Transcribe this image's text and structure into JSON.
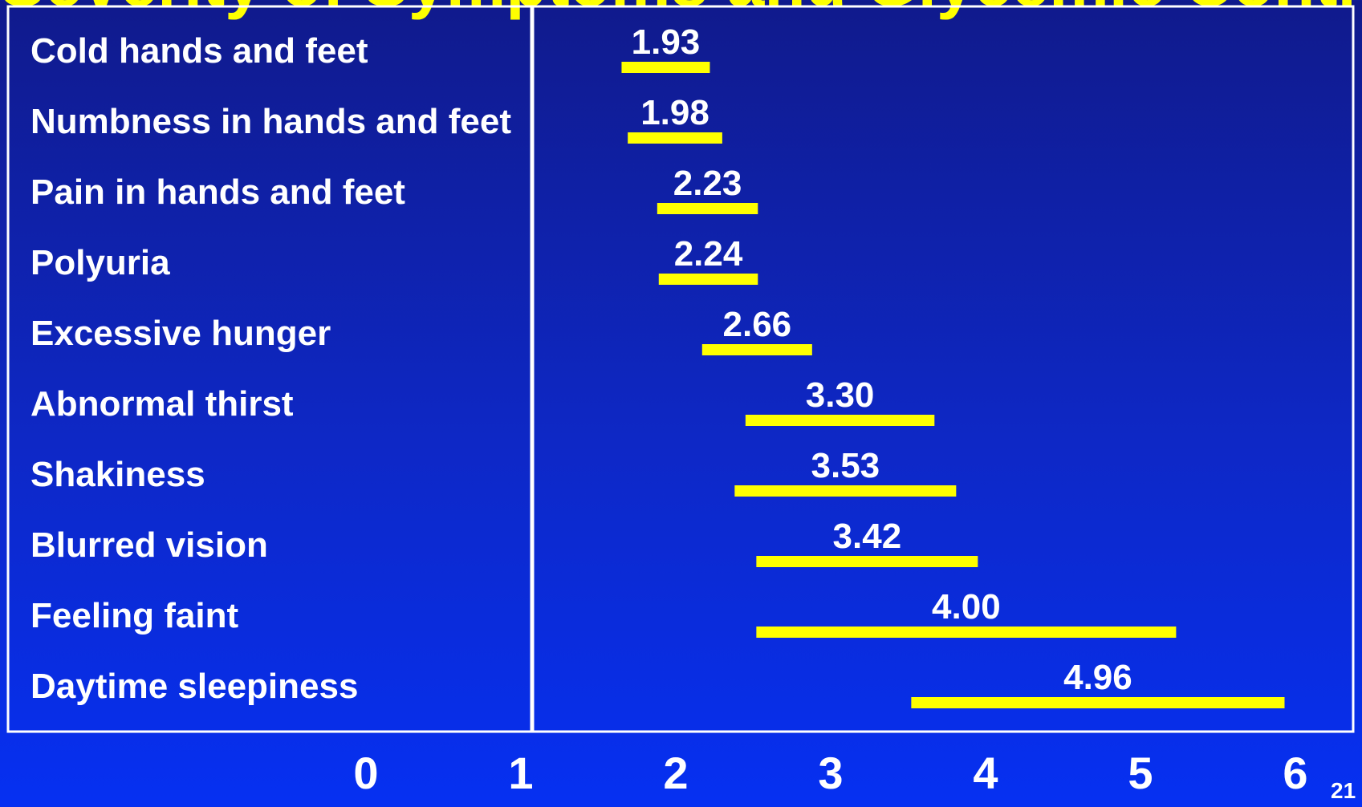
{
  "slide": {
    "title": "Severity of Symptoms and Glycemic Control",
    "page_number": "21"
  },
  "colors": {
    "background_top": "#101a8c",
    "background_bottom": "#0630f2",
    "bar": "#ffff00",
    "text": "#ffffff",
    "title": "#ffff00"
  },
  "chart_data": {
    "type": "bar",
    "orientation": "horizontal",
    "categories": [
      "Cold hands and feet",
      "Numbness in hands and feet",
      "Pain in hands and feet",
      "Polyuria",
      "Excessive hunger",
      "Abnormal thirst",
      "Shakiness",
      "Blurred vision",
      "Feeling faint",
      "Daytime sleepiness"
    ],
    "series": [
      {
        "values": [
          1.93,
          1.98,
          2.23,
          2.24,
          2.66,
          3.3,
          3.53,
          3.42,
          4.0,
          4.96
        ],
        "value_labels": [
          "1.93",
          "1.98",
          "2.23",
          "2.24",
          "2.66",
          "3.30",
          "3.53",
          "3.42",
          "4.00",
          "4.96"
        ],
        "interval_low": [
          1.65,
          1.69,
          1.88,
          1.89,
          2.17,
          2.45,
          2.38,
          2.52,
          2.52,
          3.52
        ],
        "interval_high": [
          2.22,
          2.3,
          2.53,
          2.53,
          2.88,
          3.67,
          3.81,
          3.95,
          5.23,
          5.93
        ]
      }
    ],
    "x_ticks": [
      "0",
      "1",
      "2",
      "3",
      "4",
      "5",
      "6"
    ],
    "xlim": [
      0,
      6
    ],
    "reference_line": 1,
    "grid": false
  }
}
